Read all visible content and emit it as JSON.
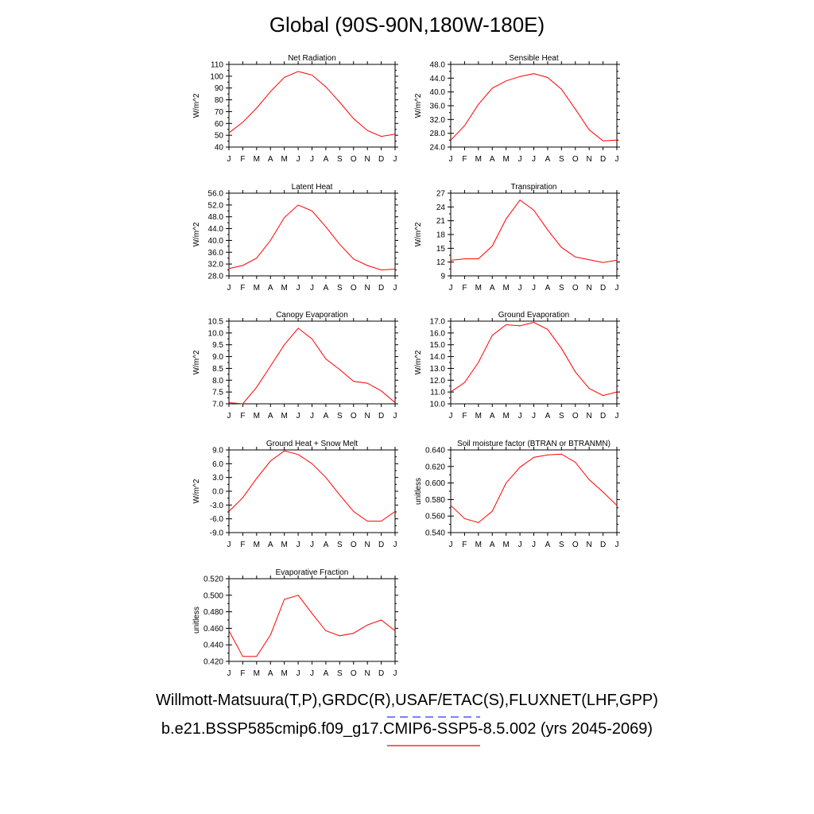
{
  "title": "Global (90S-90N,180W-180E)",
  "legend": [
    {
      "text": "Willmott-Matsuura(T,P),GRDC(R),USAF/ETAC(S),FLUXNET(LHF,GPP)",
      "color": "#3333ff",
      "style": "dashed"
    },
    {
      "text": "b.e21.BSSP585cmip6.f09_g17.CMIP6-SSP5-8.5.002 (yrs 2045-2069)",
      "color": "#ff0000",
      "style": "solid"
    }
  ],
  "chart_data": [
    {
      "type": "line",
      "title": "Net Radiation",
      "ylabel": "W/m^2",
      "categories": [
        "J",
        "F",
        "M",
        "A",
        "M",
        "J",
        "J",
        "A",
        "S",
        "O",
        "N",
        "D",
        "J"
      ],
      "ylim": [
        40,
        110
      ],
      "yticks": [
        "40",
        "50",
        "60",
        "70",
        "80",
        "90",
        "100",
        "110"
      ],
      "series": [
        {
          "color": "#ff0000",
          "values": [
            52,
            61,
            73,
            87,
            99,
            104,
            101,
            91,
            78,
            64,
            54,
            49,
            51
          ]
        }
      ]
    },
    {
      "type": "line",
      "title": "Sensible Heat",
      "ylabel": "W/m^2",
      "categories": [
        "J",
        "F",
        "M",
        "A",
        "M",
        "J",
        "J",
        "A",
        "S",
        "O",
        "N",
        "D",
        "J"
      ],
      "ylim": [
        24,
        48
      ],
      "yticks": [
        "24.0",
        "28.0",
        "32.0",
        "36.0",
        "40.0",
        "44.0",
        "48.0"
      ],
      "series": [
        {
          "color": "#ff0000",
          "values": [
            26.0,
            30.2,
            36.4,
            41.1,
            43.2,
            44.5,
            45.3,
            44.2,
            40.8,
            35.0,
            29.0,
            25.8,
            26.0
          ]
        }
      ]
    },
    {
      "type": "line",
      "title": "Latent Heat",
      "ylabel": "W/m^2",
      "categories": [
        "J",
        "F",
        "M",
        "A",
        "M",
        "J",
        "J",
        "A",
        "S",
        "O",
        "N",
        "D",
        "J"
      ],
      "ylim": [
        28,
        56
      ],
      "yticks": [
        "28.0",
        "32.0",
        "36.0",
        "40.0",
        "44.0",
        "48.0",
        "52.0",
        "56.0"
      ],
      "series": [
        {
          "color": "#ff0000",
          "values": [
            30.5,
            31.5,
            34.0,
            40.0,
            47.7,
            52.0,
            50.0,
            44.6,
            38.7,
            33.7,
            31.5,
            30.0,
            30.3
          ]
        }
      ]
    },
    {
      "type": "line",
      "title": "Transpiration",
      "ylabel": "W/m^2",
      "categories": [
        "J",
        "F",
        "M",
        "A",
        "M",
        "J",
        "J",
        "A",
        "S",
        "O",
        "N",
        "D",
        "J"
      ],
      "ylim": [
        9,
        27
      ],
      "yticks": [
        "9",
        "12",
        "15",
        "18",
        "21",
        "24",
        "27"
      ],
      "series": [
        {
          "color": "#ff0000",
          "values": [
            12.4,
            12.7,
            12.7,
            15.5,
            21.4,
            25.5,
            23.3,
            19.0,
            15.2,
            13.1,
            12.5,
            11.9,
            12.4
          ]
        }
      ]
    },
    {
      "type": "line",
      "title": "Canopy Evaporation",
      "ylabel": "W/m^2",
      "categories": [
        "J",
        "F",
        "M",
        "A",
        "M",
        "J",
        "J",
        "A",
        "S",
        "O",
        "N",
        "D",
        "J"
      ],
      "ylim": [
        7,
        10.5
      ],
      "yticks": [
        "7.0",
        "7.5",
        "8.0",
        "8.5",
        "9.0",
        "9.5",
        "10.0",
        "10.5"
      ],
      "series": [
        {
          "color": "#ff0000",
          "values": [
            7.05,
            7.0,
            7.7,
            8.6,
            9.5,
            10.2,
            9.75,
            8.9,
            8.45,
            7.95,
            7.87,
            7.55,
            7.05
          ]
        }
      ]
    },
    {
      "type": "line",
      "title": "Ground Evaporation",
      "ylabel": "W/m^2",
      "categories": [
        "J",
        "F",
        "M",
        "A",
        "M",
        "J",
        "J",
        "A",
        "S",
        "O",
        "N",
        "D",
        "J"
      ],
      "ylim": [
        10,
        17
      ],
      "yticks": [
        "10.0",
        "11.0",
        "12.0",
        "13.0",
        "14.0",
        "15.0",
        "16.0",
        "17.0"
      ],
      "series": [
        {
          "color": "#ff0000",
          "values": [
            11.0,
            11.8,
            13.5,
            15.8,
            16.7,
            16.6,
            16.9,
            16.3,
            14.7,
            12.7,
            11.3,
            10.7,
            11.0
          ]
        }
      ]
    },
    {
      "type": "line",
      "title": "Ground Heat + Snow Melt",
      "ylabel": "W/m^2",
      "categories": [
        "J",
        "F",
        "M",
        "A",
        "M",
        "J",
        "J",
        "A",
        "S",
        "O",
        "N",
        "D",
        "J"
      ],
      "ylim": [
        -9,
        9
      ],
      "yticks": [
        "-9.0",
        "-6.0",
        "-3.0",
        "0.0",
        "3.0",
        "6.0",
        "9.0"
      ],
      "series": [
        {
          "color": "#ff0000",
          "values": [
            -4.4,
            -1.4,
            2.8,
            6.6,
            8.8,
            8.0,
            6.0,
            3.0,
            -0.8,
            -4.4,
            -6.5,
            -6.5,
            -4.4
          ]
        }
      ]
    },
    {
      "type": "line",
      "title": "Soil moisture factor (BTRAN or BTRANMN)",
      "ylabel": "unitless",
      "categories": [
        "J",
        "F",
        "M",
        "A",
        "M",
        "J",
        "J",
        "A",
        "S",
        "O",
        "N",
        "D",
        "J"
      ],
      "ylim": [
        0.54,
        0.64
      ],
      "yticks": [
        "0.540",
        "0.560",
        "0.580",
        "0.600",
        "0.620",
        "0.640"
      ],
      "series": [
        {
          "color": "#ff0000",
          "values": [
            0.573,
            0.557,
            0.552,
            0.566,
            0.6,
            0.619,
            0.631,
            0.634,
            0.635,
            0.625,
            0.604,
            0.589,
            0.573
          ]
        }
      ]
    },
    {
      "type": "line",
      "title": "Evaporative Fraction",
      "ylabel": "unitless",
      "categories": [
        "J",
        "F",
        "M",
        "A",
        "M",
        "J",
        "J",
        "A",
        "S",
        "O",
        "N",
        "D",
        "J"
      ],
      "ylim": [
        0.42,
        0.52
      ],
      "yticks": [
        "0.420",
        "0.440",
        "0.460",
        "0.480",
        "0.500",
        "0.520"
      ],
      "series": [
        {
          "color": "#ff0000",
          "values": [
            0.457,
            0.426,
            0.426,
            0.452,
            0.495,
            0.5,
            0.478,
            0.457,
            0.451,
            0.454,
            0.464,
            0.47,
            0.457
          ]
        }
      ]
    }
  ]
}
